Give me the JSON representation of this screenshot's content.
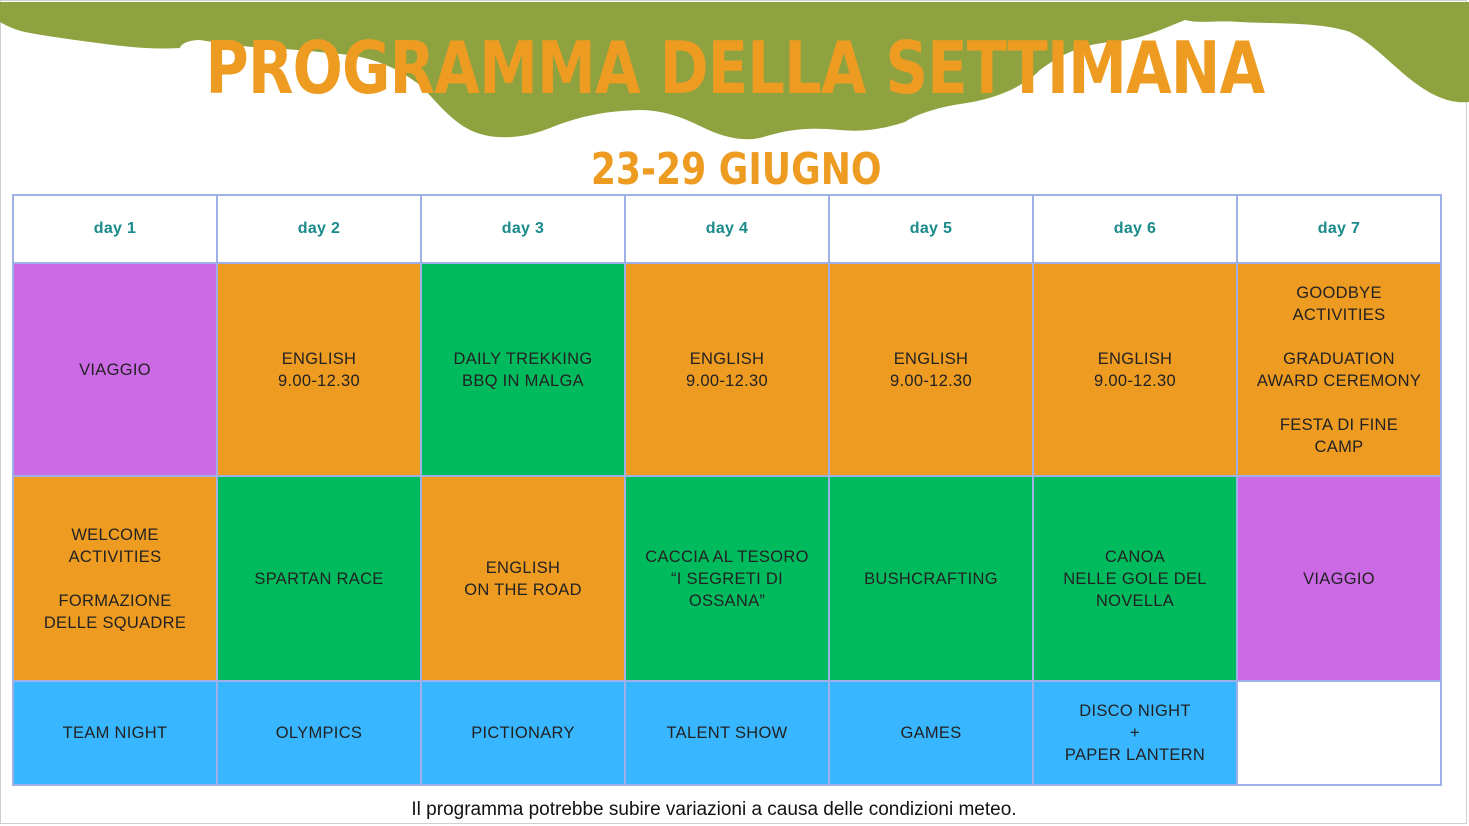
{
  "title": "PROGRAMMA DELLA SETTIMANA",
  "subtitle": "23-29 GIUGNO",
  "colors": {
    "title": "#ee9b22",
    "header_text": "#1a8a8a",
    "travel": "#cc6ae6",
    "english": "#ee9b22",
    "outdoor": "#00bb5e",
    "evening": "#38b6ff",
    "empty": "#ffffff",
    "background_hill": "#8ea340",
    "grid_border": "#9fb0e6"
  },
  "table": {
    "headers": [
      "day 1",
      "day 2",
      "day 3",
      "day 4",
      "day 5",
      "day 6",
      "day 7"
    ],
    "rows": [
      [
        {
          "text": "VIAGGIO",
          "type": "travel"
        },
        {
          "text": "ENGLISH\n9.00-12.30",
          "type": "english"
        },
        {
          "text": "DAILY TREKKING\nBBQ IN MALGA",
          "type": "outdoor"
        },
        {
          "text": "ENGLISH\n9.00-12.30",
          "type": "english"
        },
        {
          "text": "ENGLISH\n9.00-12.30",
          "type": "english"
        },
        {
          "text": "ENGLISH\n9.00-12.30",
          "type": "english"
        },
        {
          "text": "GOODBYE\nACTIVITIES\n\nGRADUATION\nAWARD CEREMONY\n\nFESTA DI FINE\nCAMP",
          "type": "english"
        }
      ],
      [
        {
          "text": "WELCOME\nACTIVITIES\n\nFORMAZIONE\nDELLE SQUADRE",
          "type": "english"
        },
        {
          "text": "SPARTAN RACE",
          "type": "outdoor"
        },
        {
          "text": "ENGLISH\nON THE ROAD",
          "type": "english"
        },
        {
          "text": "CACCIA AL TESORO\n“I SEGRETI DI\nOSSANA”",
          "type": "outdoor"
        },
        {
          "text": "BUSHCRAFTING",
          "type": "outdoor"
        },
        {
          "text": "CANOA\nNELLE GOLE DEL\nNOVELLA",
          "type": "outdoor"
        },
        {
          "text": "VIAGGIO",
          "type": "travel"
        }
      ],
      [
        {
          "text": "TEAM NIGHT",
          "type": "evening"
        },
        {
          "text": "OLYMPICS",
          "type": "evening"
        },
        {
          "text": "PICTIONARY",
          "type": "evening"
        },
        {
          "text": "TALENT SHOW",
          "type": "evening"
        },
        {
          "text": "GAMES",
          "type": "evening"
        },
        {
          "text": "DISCO NIGHT\n+\nPAPER LANTERN",
          "type": "evening"
        },
        {
          "text": "",
          "type": "empty"
        }
      ]
    ]
  },
  "footer_note": "Il programma potrebbe subire variazioni a causa delle condizioni meteo."
}
